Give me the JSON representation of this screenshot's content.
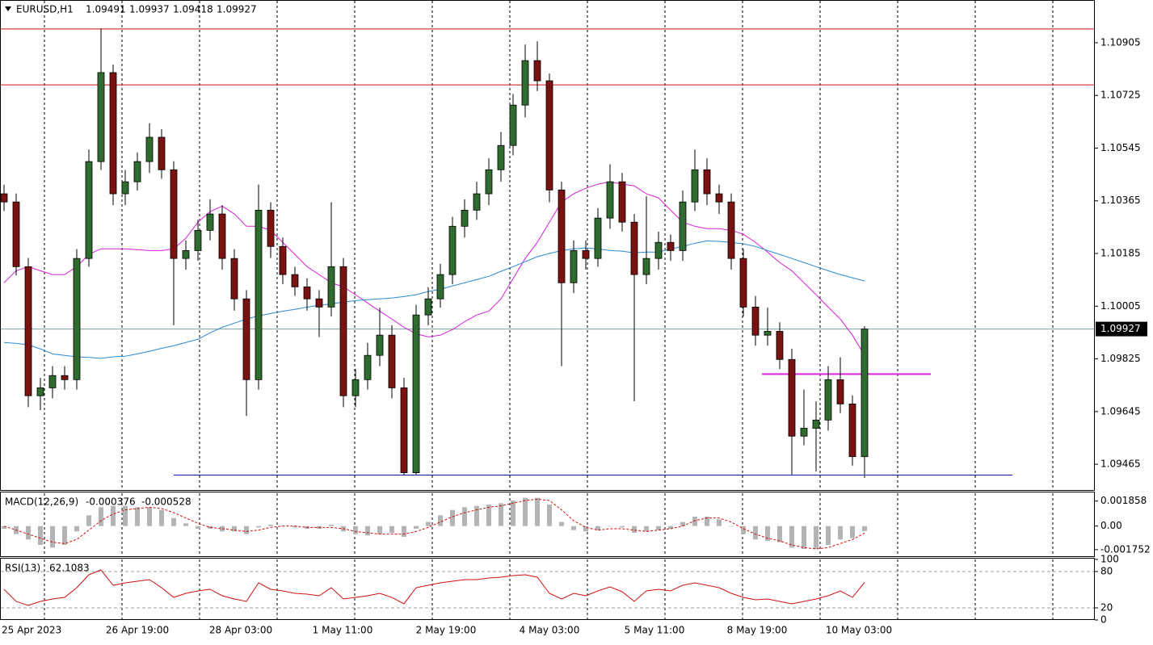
{
  "chart_data": [
    {
      "type": "candlestick",
      "symbol": "EURUSD,H1",
      "bull_color": "#2f6b2f",
      "bear_color": "#7a1212",
      "ylim": [
        1.09377,
        1.11051
      ],
      "yticks": [
        1.09465,
        1.09645,
        1.09825,
        1.10005,
        1.10185,
        1.10365,
        1.10545,
        1.10725,
        1.10905
      ],
      "x_labels": [
        "25 Apr 2023",
        "26 Apr 19:00",
        "28 Apr 03:00",
        "1 May 11:00",
        "2 May 19:00",
        "4 May 03:00",
        "5 May 11:00",
        "8 May 19:00",
        "10 May 03:00"
      ],
      "levels": [
        {
          "value": 1.10952,
          "color": "#d01010"
        },
        {
          "value": 1.10761,
          "color": "#d01010"
        },
        {
          "value": 1.09428,
          "color": "#1010b0"
        },
        {
          "value": 1.09773,
          "color": "#e020e0"
        }
      ],
      "candles": [
        [
          1.10389,
          1.1042,
          1.1033,
          1.10361
        ],
        [
          1.10361,
          1.1039,
          1.1011,
          1.1014
        ],
        [
          1.1014,
          1.1017,
          1.0966,
          1.09699
        ],
        [
          1.09699,
          1.0976,
          1.0965,
          1.09726
        ],
        [
          1.09726,
          1.098,
          1.0969,
          1.09768
        ],
        [
          1.09768,
          1.098,
          1.0972,
          1.09754
        ],
        [
          1.09754,
          1.102,
          1.0972,
          1.10168
        ],
        [
          1.10168,
          1.1054,
          1.1014,
          1.10499
        ],
        [
          1.10499,
          1.10954,
          1.1047,
          1.10803
        ],
        [
          1.10803,
          1.1083,
          1.1035,
          1.10389
        ],
        [
          1.10389,
          1.1047,
          1.1035,
          1.1043
        ],
        [
          1.1043,
          1.1053,
          1.104,
          1.10499
        ],
        [
          1.10499,
          1.1063,
          1.1046,
          1.10582
        ],
        [
          1.10582,
          1.1061,
          1.1044,
          1.10471
        ],
        [
          1.10471,
          1.105,
          1.0994,
          1.10168
        ],
        [
          1.10168,
          1.1023,
          1.1013,
          1.10195
        ],
        [
          1.10195,
          1.103,
          1.1016,
          1.10264
        ],
        [
          1.10264,
          1.1037,
          1.1023,
          1.1032
        ],
        [
          1.1032,
          1.1035,
          1.1013,
          1.10168
        ],
        [
          1.10168,
          1.102,
          1.0999,
          1.1003
        ],
        [
          1.1003,
          1.1006,
          1.0963,
          1.09754
        ],
        [
          1.09754,
          1.1042,
          1.0972,
          1.10333
        ],
        [
          1.10333,
          1.1036,
          1.1017,
          1.10209
        ],
        [
          1.10209,
          1.1024,
          1.1008,
          1.10113
        ],
        [
          1.10113,
          1.1014,
          1.1004,
          1.10071
        ],
        [
          1.10071,
          1.101,
          1.0999,
          1.1003
        ],
        [
          1.1003,
          1.1006,
          1.099,
          1.10002
        ],
        [
          1.10002,
          1.1036,
          1.0997,
          1.1014
        ],
        [
          1.1014,
          1.1017,
          1.0966,
          1.09699
        ],
        [
          1.09699,
          1.0979,
          1.0966,
          1.09754
        ],
        [
          1.09754,
          1.0988,
          1.0972,
          1.09837
        ],
        [
          1.09837,
          1.1,
          1.098,
          1.09906
        ],
        [
          1.09906,
          1.0994,
          1.0969,
          1.09726
        ],
        [
          1.09726,
          1.0976,
          1.09428,
          1.09436
        ],
        [
          1.09436,
          1.1001,
          1.0943,
          1.09975
        ],
        [
          1.09975,
          1.1007,
          1.0994,
          1.1003
        ],
        [
          1.1003,
          1.1015,
          1.1,
          1.10113
        ],
        [
          1.10113,
          1.1031,
          1.1008,
          1.10278
        ],
        [
          1.10278,
          1.1037,
          1.1024,
          1.10333
        ],
        [
          1.10333,
          1.1043,
          1.103,
          1.10389
        ],
        [
          1.10389,
          1.1051,
          1.1035,
          1.10471
        ],
        [
          1.10471,
          1.106,
          1.1043,
          1.10554
        ],
        [
          1.10554,
          1.1073,
          1.1052,
          1.10692
        ],
        [
          1.10692,
          1.10899,
          1.1065,
          1.10844
        ],
        [
          1.10844,
          1.1091,
          1.1074,
          1.10775
        ],
        [
          1.10775,
          1.108,
          1.1036,
          1.10402
        ],
        [
          1.10402,
          1.1043,
          1.098,
          1.10085
        ],
        [
          1.10085,
          1.1023,
          1.1005,
          1.10195
        ],
        [
          1.10195,
          1.1023,
          1.1013,
          1.10168
        ],
        [
          1.10168,
          1.1034,
          1.1014,
          1.10306
        ],
        [
          1.10306,
          1.1049,
          1.1027,
          1.1043
        ],
        [
          1.1043,
          1.1046,
          1.1026,
          1.10292
        ],
        [
          1.10292,
          1.1032,
          1.0968,
          1.10113
        ],
        [
          1.10113,
          1.1038,
          1.1008,
          1.10168
        ],
        [
          1.10168,
          1.1026,
          1.1013,
          1.10223
        ],
        [
          1.10223,
          1.1025,
          1.1016,
          1.10195
        ],
        [
          1.10195,
          1.104,
          1.1016,
          1.10361
        ],
        [
          1.10361,
          1.1054,
          1.1033,
          1.10471
        ],
        [
          1.10471,
          1.1051,
          1.1035,
          1.10389
        ],
        [
          1.10389,
          1.1042,
          1.1032,
          1.10361
        ],
        [
          1.10361,
          1.1039,
          1.1013,
          1.10168
        ],
        [
          1.10168,
          1.102,
          1.0997,
          1.10002
        ],
        [
          1.10002,
          1.1004,
          1.0987,
          1.09906
        ],
        [
          1.09906,
          1.1,
          1.0987,
          1.09919
        ],
        [
          1.09919,
          1.0995,
          1.0979,
          1.09823
        ],
        [
          1.09823,
          1.0986,
          1.0943,
          1.09561
        ],
        [
          1.09561,
          1.0972,
          1.0953,
          1.09588
        ],
        [
          1.09588,
          1.0968,
          1.0944,
          1.09616
        ],
        [
          1.09616,
          1.098,
          1.0958,
          1.09754
        ],
        [
          1.09754,
          1.0983,
          1.0964,
          1.09671
        ],
        [
          1.09671,
          1.097,
          1.0946,
          1.09491
        ],
        [
          1.09491,
          1.09937,
          1.09418,
          1.09927
        ]
      ],
      "lines": [
        {
          "color": "#d61fd6",
          "values": [
            1.10085,
            1.10126,
            1.1014,
            1.10126,
            1.10113,
            1.10113,
            1.1014,
            1.10182,
            1.10201,
            1.10201,
            1.10201,
            1.10198,
            1.10195,
            1.10195,
            1.10201,
            1.10237,
            1.10292,
            1.10328,
            1.10347,
            1.1032,
            1.10278,
            1.10278,
            1.10264,
            1.10223,
            1.10182,
            1.1014,
            1.10113,
            1.10085,
            1.10071,
            1.10044,
            1.10016,
            1.09988,
            1.09961,
            1.09933,
            1.09911,
            1.099,
            1.09906,
            1.09925,
            1.09952,
            1.09975,
            1.09988,
            1.1003,
            1.10099,
            1.10168,
            1.10223,
            1.10292,
            1.10361,
            1.10389,
            1.10408,
            1.10422,
            1.1043,
            1.10422,
            1.10416,
            1.10389,
            1.10375,
            1.10333,
            1.10292,
            1.10278,
            1.1027,
            1.1027,
            1.10264,
            1.10251,
            1.10223,
            1.1019,
            1.10154,
            1.10126,
            1.10085,
            1.10044,
            1.10002,
            1.09961,
            1.09906,
            1.09837
          ]
        },
        {
          "color": "#2a8ad4",
          "values": [
            1.09881,
            1.09878,
            1.09873,
            1.09859,
            1.09842,
            1.09837,
            1.09832,
            1.0983,
            1.09827,
            1.09832,
            1.09834,
            1.09842,
            1.09851,
            1.09861,
            1.0987,
            1.09881,
            1.09892,
            1.09914,
            1.09933,
            1.09947,
            1.09961,
            1.09972,
            1.0998,
            1.09988,
            1.09994,
            1.10002,
            1.10008,
            1.10013,
            1.10019,
            1.10024,
            1.10027,
            1.1003,
            1.10033,
            1.10038,
            1.10044,
            1.10055,
            1.10063,
            1.10074,
            1.10085,
            1.10096,
            1.10107,
            1.10124,
            1.1014,
            1.10157,
            1.10174,
            1.10185,
            1.10195,
            1.10201,
            1.10204,
            1.10201,
            1.10195,
            1.10193,
            1.10187,
            1.1019,
            1.1019,
            1.10201,
            1.10209,
            1.1022,
            1.10228,
            1.10226,
            1.10223,
            1.10218,
            1.10209,
            1.10195,
            1.10182,
            1.10168,
            1.10154,
            1.1014,
            1.10126,
            1.10113,
            1.10102,
            1.10091
          ]
        }
      ]
    },
    {
      "type": "macd",
      "title": "MACD(12,26,9)",
      "hist_color": "#b4b4b4",
      "signal_color": "#d01010",
      "ylim": [
        -0.0023,
        0.0025
      ],
      "yticks": [
        -0.001752,
        {
          "value": 0,
          "label": "0.00"
        },
        0.001858
      ],
      "histogram": [
        -0.0002,
        -0.0006,
        -0.001,
        -0.0014,
        -0.0016,
        -0.0014,
        -0.0004,
        0.0008,
        0.0014,
        0.0015,
        0.0015,
        0.0014,
        0.0014,
        0.0012,
        0.0006,
        0.0002,
        -0.0002,
        -0.0002,
        -0.0004,
        -0.0004,
        -0.0006,
        -0.0001,
        0.0001,
        0,
        -0.0001,
        -0.0002,
        -0.0002,
        0.0001,
        -0.0004,
        -0.0006,
        -0.0007,
        -0.0006,
        -0.0005,
        -0.0008,
        -0.0002,
        0.0003,
        0.0008,
        0.0012,
        0.0014,
        0.0015,
        0.0016,
        0.0017,
        0.0019,
        0.0021,
        0.0021,
        0.0016,
        0.0003,
        -0.0003,
        -0.0004,
        -0.0003,
        0,
        -0.0001,
        -0.0005,
        -0.0004,
        -0.0003,
        -0.0002,
        0.0003,
        0.0007,
        0.0007,
        0.0005,
        0,
        -0.0006,
        -0.001,
        -0.0011,
        -0.0012,
        -0.0016,
        -0.0017,
        -0.0017,
        -0.0014,
        -0.001,
        -0.0009,
        -0.000376
      ],
      "signal": [
        0,
        -0.0003,
        -0.0006,
        -0.0009,
        -0.0012,
        -0.0013,
        -0.001,
        -0.0003,
        0.0004,
        0.0009,
        0.0012,
        0.0013,
        0.0014,
        0.0013,
        0.001,
        0.0006,
        0.0002,
        -0.0001,
        -0.0002,
        -0.0003,
        -0.0004,
        -0.0003,
        -0.0001,
        0,
        0,
        -0.0001,
        -0.0001,
        -0.0001,
        -0.0002,
        -0.0004,
        -0.0005,
        -0.0006,
        -0.0006,
        -0.0006,
        -0.0004,
        -0.0001,
        0.0003,
        0.0007,
        0.001,
        0.0012,
        0.0014,
        0.0015,
        0.0017,
        0.0019,
        0.002,
        0.0019,
        0.0012,
        0.0004,
        -0.0001,
        -0.0003,
        -0.0002,
        -0.0002,
        -0.0003,
        -0.0004,
        -0.0003,
        -0.0002,
        0,
        0.0004,
        0.0006,
        0.0006,
        0.0003,
        -0.0002,
        -0.0006,
        -0.0009,
        -0.0011,
        -0.0014,
        -0.0016,
        -0.0017,
        -0.0016,
        -0.0013,
        -0.001,
        -0.000528
      ]
    },
    {
      "type": "rsi",
      "title": "RSI(13)",
      "color": "#d01010",
      "ylim": [
        0,
        100
      ],
      "yticks": [
        0,
        20,
        80,
        100
      ],
      "values": [
        50.7,
        30.7,
        24,
        30.7,
        34.7,
        37.3,
        53.3,
        74.7,
        82.7,
        57.3,
        61.3,
        64,
        66.7,
        53.3,
        37.3,
        44,
        48,
        50.7,
        40,
        34.7,
        30.7,
        61.3,
        50.7,
        48,
        44,
        42.7,
        40,
        53.3,
        34.7,
        37.3,
        40,
        44,
        37.3,
        26.7,
        53.3,
        57.3,
        61.3,
        64,
        66.7,
        66.7,
        69.3,
        70.7,
        73.3,
        74.7,
        70.7,
        44,
        34.7,
        44,
        40,
        48,
        54.7,
        46.7,
        30.7,
        48,
        50.7,
        48,
        57.3,
        61.3,
        57.3,
        53.3,
        44,
        37.3,
        33.3,
        34.7,
        30.7,
        26.7,
        30.7,
        34.7,
        40,
        48,
        37.3,
        62.1083
      ]
    }
  ]
}
